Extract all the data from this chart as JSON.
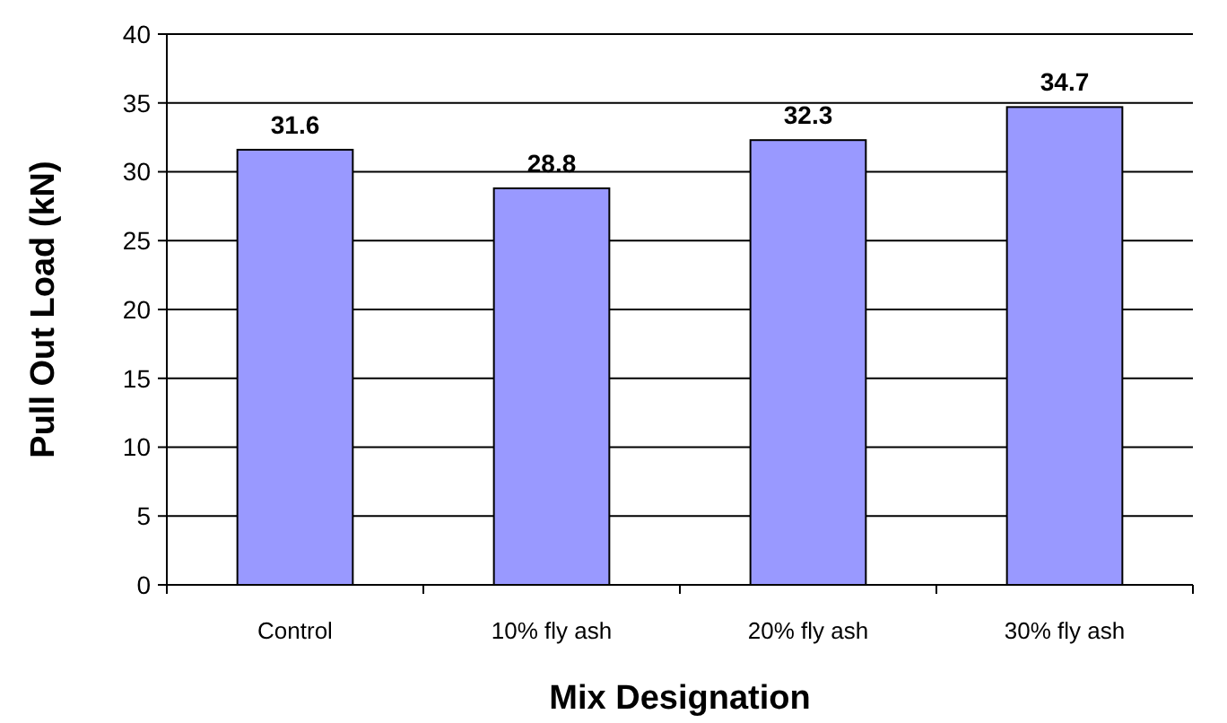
{
  "chart_data": {
    "type": "bar",
    "xlabel": "Mix Designation",
    "ylabel": "Pull Out Load (kN)",
    "categories": [
      "Control",
      "10% fly ash",
      "20% fly ash",
      "30% fly ash"
    ],
    "values": [
      31.6,
      28.8,
      32.3,
      34.7
    ],
    "color": "#9999ff",
    "ylim": [
      0,
      40
    ],
    "yticks": [
      0,
      5,
      10,
      15,
      20,
      25,
      30,
      35,
      40
    ],
    "grid": "y",
    "data_labels": true
  }
}
